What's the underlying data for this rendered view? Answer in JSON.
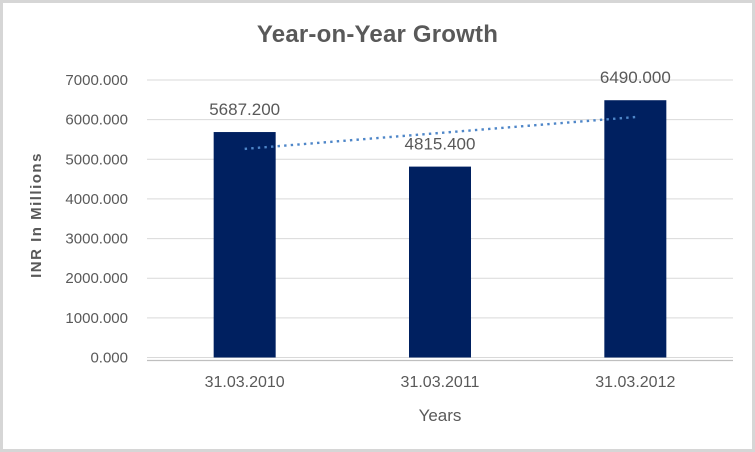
{
  "window": {
    "background": "#ffffff",
    "border_color": "#d6d6d6"
  },
  "chart_data": {
    "type": "bar",
    "title": "Year-on-Year Growth",
    "xlabel": "Years",
    "ylabel": "INR In Millions",
    "categories": [
      "31.03.2010",
      "31.03.2011",
      "31.03.2012"
    ],
    "values": [
      5687.2,
      4815.4,
      6490.0
    ],
    "data_labels": [
      "5687.200",
      "4815.400",
      "6490.000"
    ],
    "ylim": [
      0,
      7000
    ],
    "ytick_values": [
      0,
      1000,
      2000,
      3000,
      4000,
      5000,
      6000,
      7000
    ],
    "ytick_labels": [
      "0.000",
      "1000.000",
      "2000.000",
      "3000.000",
      "4000.000",
      "5000.000",
      "6000.000",
      "7000.000"
    ],
    "grid": "horizontal",
    "legend": "none",
    "colors": {
      "bar": "#002060",
      "text": "#595959",
      "gridline": "#d9d9d9",
      "axis_line": "#bfbfbf",
      "trendline": "#4e86c8"
    },
    "trendline": {
      "type": "linear",
      "style": "dotted",
      "start_value": 5262.8,
      "end_value": 6065.6
    }
  }
}
